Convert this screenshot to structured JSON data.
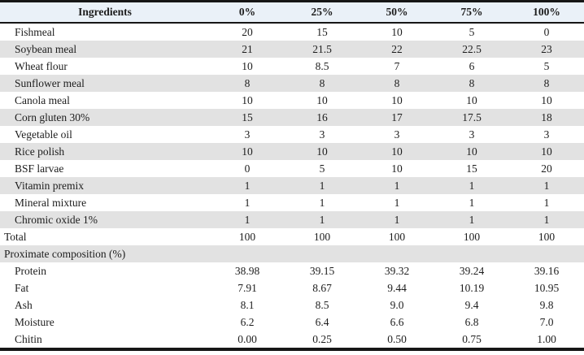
{
  "table": {
    "header": {
      "ingredients_label": "Ingredients",
      "columns": [
        "0%",
        "25%",
        "50%",
        "75%",
        "100%"
      ]
    },
    "rows": [
      {
        "label": "Fishmeal",
        "values": [
          "20",
          "15",
          "10",
          "5",
          "0"
        ],
        "indent": true,
        "shaded": false
      },
      {
        "label": "Soybean meal",
        "values": [
          "21",
          "21.5",
          "22",
          "22.5",
          "23"
        ],
        "indent": true,
        "shaded": true
      },
      {
        "label": "Wheat flour",
        "values": [
          "10",
          "8.5",
          "7",
          "6",
          "5"
        ],
        "indent": true,
        "shaded": false
      },
      {
        "label": "Sunflower meal",
        "values": [
          "8",
          "8",
          "8",
          "8",
          "8"
        ],
        "indent": true,
        "shaded": true
      },
      {
        "label": "Canola meal",
        "values": [
          "10",
          "10",
          "10",
          "10",
          "10"
        ],
        "indent": true,
        "shaded": false
      },
      {
        "label": "Corn gluten 30%",
        "values": [
          "15",
          "16",
          "17",
          "17.5",
          "18"
        ],
        "indent": true,
        "shaded": true
      },
      {
        "label": "Vegetable oil",
        "values": [
          "3",
          "3",
          "3",
          "3",
          "3"
        ],
        "indent": true,
        "shaded": false
      },
      {
        "label": "Rice polish",
        "values": [
          "10",
          "10",
          "10",
          "10",
          "10"
        ],
        "indent": true,
        "shaded": true
      },
      {
        "label": "BSF larvae",
        "values": [
          "0",
          "5",
          "10",
          "15",
          "20"
        ],
        "indent": true,
        "shaded": false
      },
      {
        "label": "Vitamin premix",
        "values": [
          "1",
          "1",
          "1",
          "1",
          "1"
        ],
        "indent": true,
        "shaded": true
      },
      {
        "label": "Mineral mixture",
        "values": [
          "1",
          "1",
          "1",
          "1",
          "1"
        ],
        "indent": true,
        "shaded": false
      },
      {
        "label": "Chromic oxide 1%",
        "values": [
          "1",
          "1",
          "1",
          "1",
          "1"
        ],
        "indent": true,
        "shaded": true
      },
      {
        "label": "Total",
        "values": [
          "100",
          "100",
          "100",
          "100",
          "100"
        ],
        "indent": false,
        "shaded": false
      },
      {
        "label": "Proximate composition (%)",
        "values": [
          "",
          "",
          "",
          "",
          ""
        ],
        "indent": false,
        "shaded": true
      },
      {
        "label": "Protein",
        "values": [
          "38.98",
          "39.15",
          "39.32",
          "39.24",
          "39.16"
        ],
        "indent": true,
        "shaded": false
      },
      {
        "label": "Fat",
        "values": [
          "7.91",
          "8.67",
          "9.44",
          "10.19",
          "10.95"
        ],
        "indent": true,
        "shaded": false
      },
      {
        "label": "Ash",
        "values": [
          "8.1",
          "8.5",
          "9.0",
          "9.4",
          "9.8"
        ],
        "indent": true,
        "shaded": false
      },
      {
        "label": "Moisture",
        "values": [
          "6.2",
          "6.4",
          "6.6",
          "6.8",
          "7.0"
        ],
        "indent": true,
        "shaded": false
      },
      {
        "label": "Chitin",
        "values": [
          "0.00",
          "0.25",
          "0.50",
          "0.75",
          "1.00"
        ],
        "indent": true,
        "shaded": false
      }
    ],
    "colors": {
      "header_bg": "#eaf1f8",
      "stripe_bg": "#e2e2e2",
      "border": "#161616"
    }
  }
}
